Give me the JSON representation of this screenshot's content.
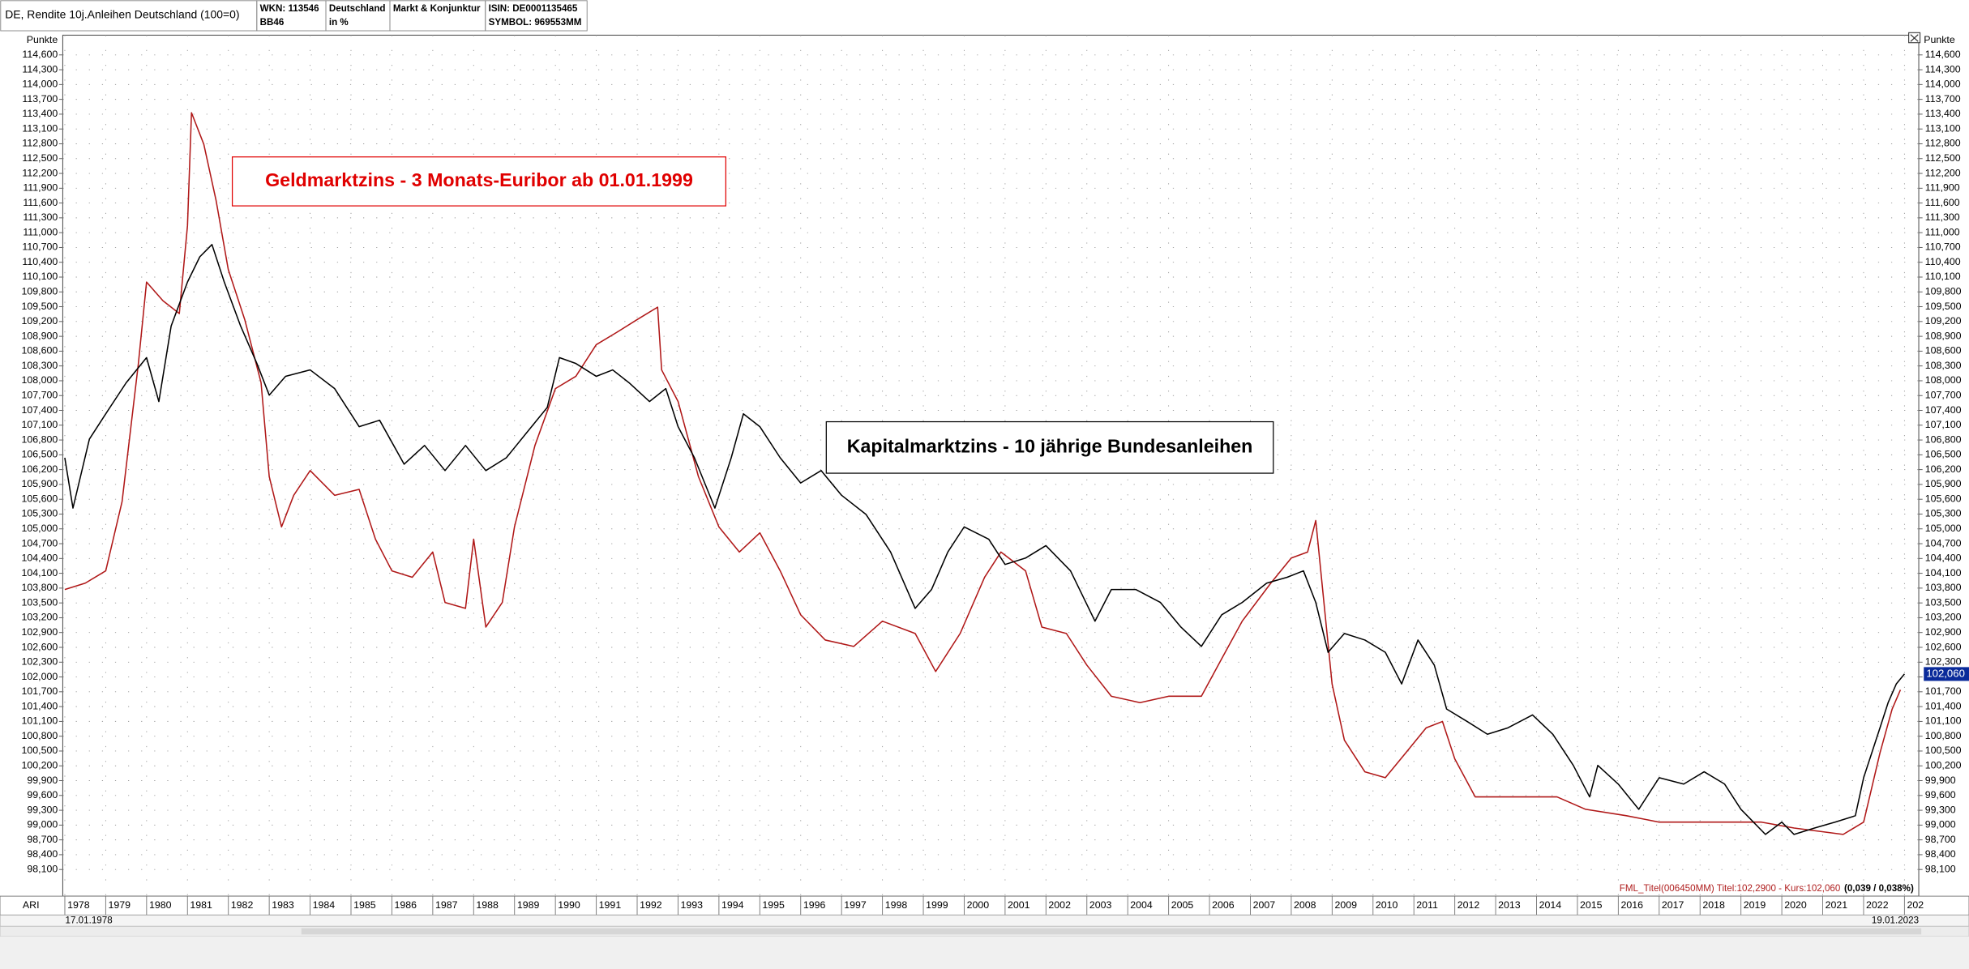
{
  "header": {
    "title": "DE, Rendite 10j.Anleihen Deutschland (100=0)",
    "cells": [
      [
        "WKN: 113546",
        "BB46"
      ],
      [
        "Deutschland",
        "in %"
      ],
      [
        "Markt & Konjunktur"
      ],
      [
        "ISIN: DE0001135465",
        "SYMBOL: 969553MM"
      ]
    ]
  },
  "chart_data": {
    "type": "line",
    "y_label": "Punkte",
    "x_label": "ARI",
    "start_date": "17.01.1978",
    "end_date": "19.01.2023",
    "annotations": [
      {
        "text": "Geldmarktzins - 3 Monats-Euribor ab 01.01.1999",
        "color": "#e00000"
      },
      {
        "text": "Kapitalmarktzins - 10 jährige Bundesanleihen",
        "color": "#000000"
      }
    ],
    "info_text": "FML_Titel(006450MM) Titel:102,2900 - Kurs:102,060",
    "info_change": "(0,039 / 0,038%)",
    "info_color": "#b02020",
    "last_price": {
      "value": 102.06,
      "label": "102,060"
    },
    "grid": true,
    "xlim": [
      1977.95,
      2023.35
    ],
    "ylim": [
      97.56,
      115.0
    ],
    "xticks": [
      1978,
      1979,
      1980,
      1981,
      1982,
      1983,
      1984,
      1985,
      1986,
      1987,
      1988,
      1989,
      1990,
      1991,
      1992,
      1993,
      1994,
      1995,
      1996,
      1997,
      1998,
      1999,
      2000,
      2001,
      2002,
      2003,
      2004,
      2005,
      2006,
      2007,
      2008,
      2009,
      2010,
      2011,
      2012,
      2013,
      2014,
      2015,
      2016,
      2017,
      2018,
      2019,
      2020,
      2021,
      2022,
      {
        "value": 2023,
        "label": "202"
      }
    ],
    "yticks": [
      {
        "value": 98.1,
        "label": "98,100"
      },
      {
        "value": 98.4,
        "label": "98,400"
      },
      {
        "value": 98.7,
        "label": "98,700"
      },
      {
        "value": 99.0,
        "label": "99,000"
      },
      {
        "value": 99.3,
        "label": "99,300"
      },
      {
        "value": 99.6,
        "label": "99,600"
      },
      {
        "value": 99.9,
        "label": "99,900"
      },
      {
        "value": 100.2,
        "label": "100,200"
      },
      {
        "value": 100.5,
        "label": "100,500"
      },
      {
        "value": 100.8,
        "label": "100,800"
      },
      {
        "value": 101.1,
        "label": "101,100"
      },
      {
        "value": 101.4,
        "label": "101,400"
      },
      {
        "value": 101.7,
        "label": "101,700"
      },
      {
        "value": 102.0,
        "label": "102,000"
      },
      {
        "value": 102.3,
        "label": "102,300"
      },
      {
        "value": 102.6,
        "label": "102,600"
      },
      {
        "value": 102.9,
        "label": "102,900"
      },
      {
        "value": 103.2,
        "label": "103,200"
      },
      {
        "value": 103.5,
        "label": "103,500"
      },
      {
        "value": 103.8,
        "label": "103,800"
      },
      {
        "value": 104.1,
        "label": "104,100"
      },
      {
        "value": 104.4,
        "label": "104,400"
      },
      {
        "value": 104.7,
        "label": "104,700"
      },
      {
        "value": 105.0,
        "label": "105,000"
      },
      {
        "value": 105.3,
        "label": "105,300"
      },
      {
        "value": 105.6,
        "label": "105,600"
      },
      {
        "value": 105.9,
        "label": "105,900"
      },
      {
        "value": 106.2,
        "label": "106,200"
      },
      {
        "value": 106.5,
        "label": "106,500"
      },
      {
        "value": 106.8,
        "label": "106,800"
      },
      {
        "value": 107.1,
        "label": "107,100"
      },
      {
        "value": 107.4,
        "label": "107,400"
      },
      {
        "value": 107.7,
        "label": "107,700"
      },
      {
        "value": 108.0,
        "label": "108,000"
      },
      {
        "value": 108.3,
        "label": "108,300"
      },
      {
        "value": 108.6,
        "label": "108,600"
      },
      {
        "value": 108.9,
        "label": "108,900"
      },
      {
        "value": 109.2,
        "label": "109,200"
      },
      {
        "value": 109.5,
        "label": "109,500"
      },
      {
        "value": 109.8,
        "label": "109,800"
      },
      {
        "value": 110.1,
        "label": "110,100"
      },
      {
        "value": 110.4,
        "label": "110,400"
      },
      {
        "value": 110.7,
        "label": "110,700"
      },
      {
        "value": 111.0,
        "label": "111,000"
      },
      {
        "value": 111.3,
        "label": "111,300"
      },
      {
        "value": 111.6,
        "label": "111,600"
      },
      {
        "value": 111.9,
        "label": "111,900"
      },
      {
        "value": 112.2,
        "label": "112,200"
      },
      {
        "value": 112.5,
        "label": "112,500"
      },
      {
        "value": 112.8,
        "label": "112,800"
      },
      {
        "value": 113.1,
        "label": "113,100"
      },
      {
        "value": 113.4,
        "label": "113,400"
      },
      {
        "value": 113.7,
        "label": "113,700"
      },
      {
        "value": 114.0,
        "label": "114,000"
      },
      {
        "value": 114.3,
        "label": "114,300"
      },
      {
        "value": 114.6,
        "label": "114,600"
      }
    ],
    "series": [
      {
        "color": "#b01818",
        "x": [
          1978.0,
          1978.5,
          1979.0,
          1979.4,
          1979.8,
          1980.0,
          1980.4,
          1980.8,
          1981.0,
          1981.1,
          1981.4,
          1981.7,
          1982.0,
          1982.4,
          1982.8,
          1983.0,
          1983.3,
          1983.6,
          1984.0,
          1984.6,
          1985.2,
          1985.6,
          1986.0,
          1986.5,
          1987.0,
          1987.3,
          1987.8,
          1988.0,
          1988.3,
          1988.7,
          1989.0,
          1989.5,
          1990.0,
          1990.5,
          1991.0,
          1991.5,
          1992.0,
          1992.5,
          1992.6,
          1993.0,
          1993.5,
          1994.0,
          1994.5,
          1995.0,
          1995.5,
          1996.0,
          1996.6,
          1997.3,
          1998.0,
          1998.8,
          1999.3,
          1999.9,
          2000.5,
          2000.9,
          2001.5,
          2001.9,
          2002.5,
          2003.0,
          2003.6,
          2004.3,
          2005.0,
          2005.8,
          2006.3,
          2006.8,
          2007.5,
          2008.0,
          2008.4,
          2008.6,
          2008.8,
          2009.0,
          2009.3,
          2009.8,
          2010.3,
          2010.8,
          2011.3,
          2011.7,
          2012.0,
          2012.5,
          2013.5,
          2014.5,
          2015.2,
          2016.2,
          2017.0,
          2018.5,
          2019.5,
          2020.3,
          2021.5,
          2022.0,
          2022.4,
          2022.7,
          2022.9
        ],
        "values": [
          103.77,
          103.9,
          104.15,
          105.55,
          108.35,
          110.0,
          109.62,
          109.36,
          111.14,
          113.43,
          112.79,
          111.65,
          110.25,
          109.24,
          107.96,
          106.06,
          105.04,
          105.68,
          106.18,
          105.68,
          105.8,
          104.79,
          104.15,
          104.02,
          104.53,
          103.51,
          103.39,
          104.79,
          103.01,
          103.51,
          105.04,
          106.69,
          107.84,
          108.09,
          108.73,
          108.98,
          109.24,
          109.49,
          108.22,
          107.58,
          106.06,
          105.04,
          104.53,
          104.92,
          104.15,
          103.26,
          102.75,
          102.62,
          103.13,
          102.88,
          102.11,
          102.88,
          104.02,
          104.53,
          104.15,
          103.01,
          102.88,
          102.24,
          101.61,
          101.48,
          101.61,
          101.61,
          102.37,
          103.13,
          103.9,
          104.41,
          104.53,
          105.17,
          103.51,
          101.86,
          100.72,
          100.08,
          99.96,
          100.46,
          100.97,
          101.1,
          100.34,
          99.57,
          99.57,
          99.57,
          99.32,
          99.19,
          99.06,
          99.06,
          99.06,
          98.94,
          98.81,
          99.06,
          100.46,
          101.35,
          101.74
        ]
      },
      {
        "color": "#000000",
        "x": [
          1978.0,
          1978.2,
          1978.6,
          1979.0,
          1979.5,
          1980.0,
          1980.3,
          1980.6,
          1981.0,
          1981.3,
          1981.6,
          1981.9,
          1982.3,
          1982.7,
          1983.0,
          1983.4,
          1984.0,
          1984.6,
          1985.2,
          1985.7,
          1986.3,
          1986.8,
          1987.3,
          1987.8,
          1988.3,
          1988.8,
          1989.3,
          1989.8,
          1990.1,
          1990.5,
          1991.0,
          1991.4,
          1991.8,
          1992.3,
          1992.7,
          1993.0,
          1993.4,
          1993.9,
          1994.3,
          1994.6,
          1995.0,
          1995.5,
          1996.0,
          1996.5,
          1997.0,
          1997.6,
          1998.2,
          1998.8,
          1999.2,
          1999.6,
          2000.0,
          2000.6,
          2001.0,
          2001.5,
          2002.0,
          2002.6,
          2003.2,
          2003.6,
          2004.2,
          2004.8,
          2005.3,
          2005.8,
          2006.3,
          2006.8,
          2007.4,
          2007.9,
          2008.3,
          2008.6,
          2008.9,
          2009.3,
          2009.8,
          2010.3,
          2010.7,
          2011.1,
          2011.5,
          2011.8,
          2012.3,
          2012.8,
          2013.3,
          2013.9,
          2014.4,
          2014.9,
          2015.3,
          2015.5,
          2016.0,
          2016.5,
          2017.0,
          2017.6,
          2018.1,
          2018.6,
          2019.0,
          2019.6,
          2020.0,
          2020.3,
          2020.8,
          2021.3,
          2021.8,
          2022.0,
          2022.4,
          2022.6,
          2022.8,
          2023.0
        ],
        "values": [
          106.44,
          105.42,
          106.82,
          107.33,
          107.96,
          108.47,
          107.58,
          109.11,
          110.0,
          110.51,
          110.76,
          110.0,
          109.11,
          108.35,
          107.71,
          108.09,
          108.22,
          107.84,
          107.07,
          107.2,
          106.31,
          106.69,
          106.18,
          106.69,
          106.18,
          106.44,
          106.95,
          107.46,
          108.47,
          108.35,
          108.09,
          108.22,
          107.96,
          107.58,
          107.84,
          107.07,
          106.44,
          105.42,
          106.44,
          107.33,
          107.07,
          106.44,
          105.93,
          106.18,
          105.68,
          105.29,
          104.53,
          103.39,
          103.77,
          104.53,
          105.04,
          104.79,
          104.28,
          104.41,
          104.66,
          104.15,
          103.13,
          103.77,
          103.77,
          103.51,
          103.01,
          102.62,
          103.26,
          103.51,
          103.9,
          104.02,
          104.15,
          103.51,
          102.5,
          102.88,
          102.75,
          102.5,
          101.86,
          102.75,
          102.24,
          101.35,
          101.1,
          100.84,
          100.97,
          101.23,
          100.84,
          100.21,
          99.57,
          100.21,
          99.83,
          99.32,
          99.96,
          99.83,
          100.08,
          99.83,
          99.32,
          98.81,
          99.06,
          98.81,
          98.94,
          99.06,
          99.19,
          99.96,
          100.97,
          101.48,
          101.86,
          102.06
        ]
      }
    ]
  }
}
